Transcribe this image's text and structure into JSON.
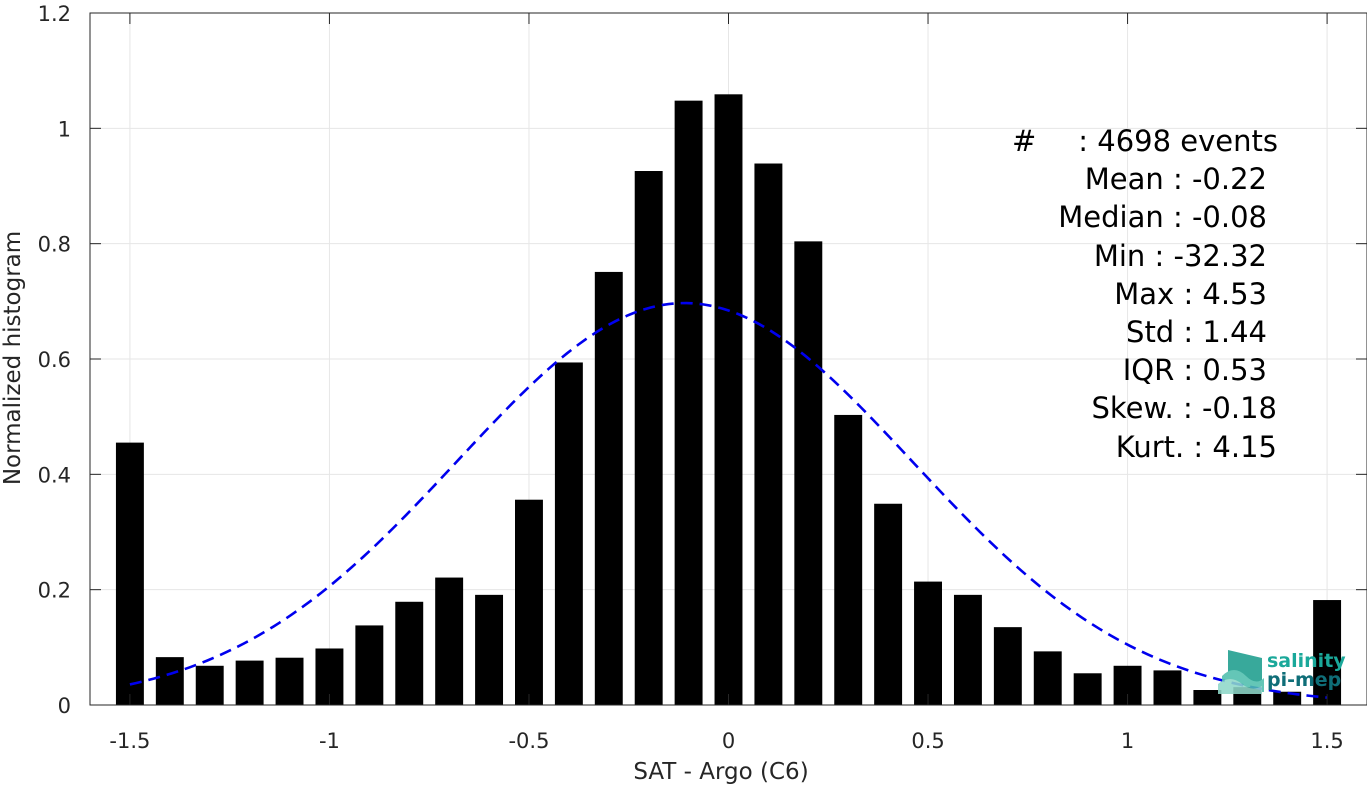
{
  "chart_data": {
    "type": "bar",
    "title": "",
    "xlabel": "SAT - Argo (C6)",
    "ylabel": "Normalized histogram",
    "xlim": [
      -1.6,
      1.6
    ],
    "ylim": [
      0,
      1.2
    ],
    "xticks": [
      -1.5,
      -1,
      -0.5,
      0,
      0.5,
      1,
      1.5
    ],
    "xtick_labels": [
      "-1.5",
      "-1",
      "-0.5",
      "0",
      "0.5",
      "1",
      "1.5"
    ],
    "yticks": [
      0,
      0.2,
      0.4,
      0.6,
      0.8,
      1,
      1.2
    ],
    "ytick_labels": [
      "0",
      "0.2",
      "0.4",
      "0.6",
      "0.8",
      "1",
      "1.2"
    ],
    "grid": true,
    "bar_color": "#000000",
    "bar_width": 0.07,
    "x": [
      -1.5,
      -1.4,
      -1.3,
      -1.2,
      -1.1,
      -1.0,
      -0.9,
      -0.8,
      -0.7,
      -0.6,
      -0.5,
      -0.4,
      -0.3,
      -0.2,
      -0.1,
      0.0,
      0.1,
      0.2,
      0.3,
      0.4,
      0.5,
      0.6,
      0.7,
      0.8,
      0.9,
      1.0,
      1.1,
      1.2,
      1.3,
      1.4,
      1.5
    ],
    "values": [
      0.455,
      0.083,
      0.068,
      0.077,
      0.082,
      0.098,
      0.138,
      0.179,
      0.221,
      0.191,
      0.356,
      0.594,
      0.751,
      0.926,
      1.048,
      1.059,
      0.939,
      0.804,
      0.503,
      0.349,
      0.214,
      0.191,
      0.135,
      0.093,
      0.055,
      0.068,
      0.06,
      0.026,
      0.031,
      0.023,
      0.182
    ],
    "fit_curve": {
      "type": "gaussian",
      "color": "#0000ee",
      "style": "dashed",
      "mean": -0.11,
      "std": 0.57,
      "peak": 0.697,
      "x_range": [
        -1.5,
        1.5
      ]
    },
    "annotations": [
      {
        "label": "#",
        "text": ": 4698 events"
      },
      {
        "text": "Mean : -0.22"
      },
      {
        "text": "Median : -0.08"
      },
      {
        "text": "Min : -32.32"
      },
      {
        "text": "Max : 4.53"
      },
      {
        "text": "Std : 1.44"
      },
      {
        "text": "IQR : 0.53"
      },
      {
        "text": "Skew. : -0.18"
      },
      {
        "text": "Kurt. : 4.15"
      }
    ]
  },
  "logo": {
    "line1": "salinity",
    "line2": "pi-mep",
    "color_text1": "#1aa89a",
    "color_text2": "#0f6e78",
    "color_mark": "#1d9e8e"
  }
}
